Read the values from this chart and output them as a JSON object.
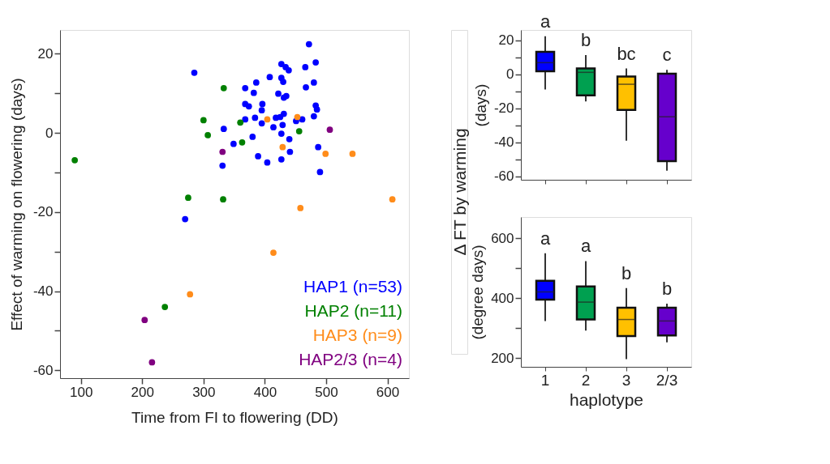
{
  "chart_data": [
    {
      "type": "scatter",
      "xlabel": "Time from FI to flowering (DD)",
      "ylabel": "Effect of warming on flowering (days)",
      "xlim": [
        66,
        635
      ],
      "ylim": [
        -62,
        26
      ],
      "xticks": [
        100,
        200,
        300,
        400,
        500,
        600
      ],
      "yticks": [
        -60,
        {
          "value": -50,
          "label": null
        },
        -40,
        {
          "value": -30,
          "label": null
        },
        -20,
        {
          "value": -10,
          "label": null
        },
        0,
        {
          "value": 10,
          "label": null
        },
        20
      ],
      "grid": false,
      "legend": "bottom right",
      "marker": "circle",
      "series": [
        {
          "name": "HAP1 (n=53)",
          "color": "#0000ff",
          "x": [
            285,
            333,
            349,
            331,
            368,
            368,
            374,
            368,
            270,
            472,
            483,
            466,
            427,
            434,
            439,
            408,
            386,
            382,
            427,
            430,
            480,
            467,
            422,
            431,
            435,
            396,
            395,
            483,
            485,
            480,
            431,
            418,
            425,
            384,
            395,
            414,
            429,
            451,
            461,
            380,
            427,
            440,
            441,
            487,
            389,
            404,
            427,
            490
          ],
          "values": [
            15.2,
            1.0,
            -2.8,
            -8.3,
            11.3,
            7.3,
            6.7,
            3.4,
            -21.8,
            22.4,
            17.8,
            16.6,
            17.4,
            16.6,
            15.8,
            14.1,
            12.7,
            10.1,
            13.9,
            12.9,
            12.7,
            11.5,
            9.9,
            8.9,
            9.3,
            7.3,
            5.7,
            6.9,
            5.9,
            4.2,
            4.8,
            3.8,
            4.0,
            3.8,
            2.4,
            1.4,
            2.0,
            3.0,
            3.4,
            -1.0,
            -0.2,
            -1.6,
            -4.8,
            -3.6,
            -5.9,
            -7.5,
            -6.7,
            -9.9
          ]
        },
        {
          "name": "HAP2 (n=11)",
          "color": "#008000",
          "x": [
            90,
            333,
            300,
            307,
            360,
            363,
            275,
            332,
            237,
            456
          ],
          "values": [
            -6.9,
            11.3,
            3.2,
            -0.6,
            2.6,
            -2.4,
            -16.4,
            -16.8,
            -44,
            0.4
          ]
        },
        {
          "name": "HAP3 (n=9)",
          "color": "#ff8c1a",
          "x": [
            278,
            404,
            453,
            429,
            499,
            543,
            608,
            458,
            414
          ],
          "values": [
            -40.8,
            3.4,
            4.0,
            -3.6,
            -5.3,
            -5.3,
            -16.8,
            -19,
            -30.3
          ]
        },
        {
          "name": "HAP2/3 (n=4)",
          "color": "#800080",
          "x": [
            331,
            204,
            216,
            506
          ],
          "values": [
            -4.8,
            -47.3,
            -58,
            0.8
          ]
        }
      ]
    },
    {
      "type": "box",
      "ylabel": "(days)",
      "categories": [
        null,
        null,
        null,
        null
      ],
      "colors": [
        "#0000ff",
        "#00a050",
        "#ffc000",
        "#6600cc"
      ],
      "ylim": [
        -62,
        26
      ],
      "yticks": [
        -60,
        {
          "value": -50,
          "label": null
        },
        -40,
        {
          "value": -30,
          "label": null
        },
        -20,
        {
          "value": -10,
          "label": null
        },
        0,
        {
          "value": 10,
          "label": null
        },
        20
      ],
      "annotations": [
        "Δ FT by warming",
        "a",
        "b",
        "bc",
        "c"
      ],
      "boxes": [
        {
          "low": -9,
          "q1": 1.7,
          "median": 6.8,
          "q3": 13.2,
          "high": 22.3
        },
        {
          "low": -16,
          "q1": -12.4,
          "median": 1.1,
          "q3": 3.4,
          "high": 11.3
        },
        {
          "low": -39,
          "q1": -21,
          "median": -5.9,
          "q3": -1.4,
          "high": 3.4
        },
        {
          "low": -56.7,
          "q1": -51,
          "median": -25,
          "q3": 0.3,
          "high": 2.6
        }
      ]
    },
    {
      "type": "box",
      "ylabel": "(degree days)",
      "xlabel": "haplotype",
      "categories": [
        "1",
        "2",
        "3",
        "2/3"
      ],
      "colors": [
        "#0000ff",
        "#00a050",
        "#ffc000",
        "#6600cc"
      ],
      "ylim": [
        171,
        671
      ],
      "yticks": [
        200,
        {
          "value": 300,
          "label": null
        },
        400,
        {
          "value": 500,
          "label": null
        },
        600
      ],
      "annotations": [
        "a",
        "a",
        "b",
        "b"
      ],
      "boxes": [
        {
          "low": 324,
          "q1": 395,
          "median": 421,
          "q3": 458,
          "high": 550
        },
        {
          "low": 292,
          "q1": 329,
          "median": 387,
          "q3": 439,
          "high": 524
        },
        {
          "low": 197,
          "q1": 274,
          "median": 329,
          "q3": 368,
          "high": 434
        },
        {
          "low": 253,
          "q1": 276,
          "median": 324,
          "q3": 368,
          "high": 382
        }
      ]
    }
  ]
}
